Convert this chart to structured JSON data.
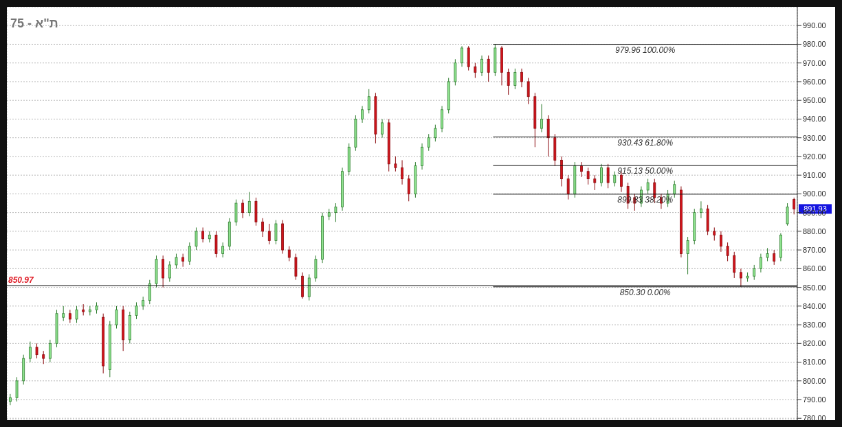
{
  "chart_data": {
    "type": "candlestick",
    "title": "ת\"א - 75",
    "categories": [
      null,
      null,
      null,
      null,
      null,
      null,
      null,
      null,
      null,
      null,
      null,
      null,
      null,
      null,
      null,
      null,
      null,
      null,
      null,
      null,
      null,
      null,
      null,
      null,
      null,
      null,
      null,
      null,
      null,
      null,
      null,
      null,
      null,
      null,
      null,
      null,
      null,
      null,
      null,
      null,
      null,
      null,
      null,
      null,
      null,
      null,
      null,
      null,
      null,
      null,
      null,
      null,
      null,
      null,
      null,
      null,
      null,
      null,
      null,
      null,
      null,
      null,
      null,
      null,
      null,
      null,
      null,
      null,
      null,
      null,
      null,
      null,
      null,
      null,
      null,
      null,
      null,
      null,
      null,
      null,
      null,
      null,
      null,
      null,
      null,
      null,
      null,
      null,
      null,
      null,
      null,
      null,
      null,
      null,
      null,
      null,
      null,
      null,
      null,
      null,
      null,
      null,
      null,
      null,
      null,
      null,
      null,
      null,
      null,
      null,
      null,
      null,
      null,
      null,
      null,
      null,
      null,
      null,
      null
    ],
    "ohlc": [
      [
        789,
        793,
        787,
        791
      ],
      [
        791,
        802,
        789,
        800
      ],
      [
        800,
        814,
        798,
        812
      ],
      [
        812,
        821,
        810,
        818
      ],
      [
        818,
        820,
        812,
        814
      ],
      [
        814,
        816,
        809,
        812
      ],
      [
        812,
        822,
        810,
        820
      ],
      [
        820,
        838,
        818,
        836
      ],
      [
        834,
        840,
        832,
        836
      ],
      [
        836,
        838,
        831,
        833
      ],
      [
        833,
        840,
        831,
        838
      ],
      [
        838,
        841,
        835,
        837
      ],
      [
        837,
        840,
        835,
        838
      ],
      [
        838,
        842,
        836,
        840
      ],
      [
        834,
        836,
        804,
        808
      ],
      [
        806,
        832,
        802,
        830
      ],
      [
        830,
        840,
        828,
        838
      ],
      [
        838,
        840,
        816,
        822
      ],
      [
        822,
        837,
        820,
        835
      ],
      [
        835,
        842,
        833,
        840
      ],
      [
        840,
        845,
        838,
        843
      ],
      [
        843,
        854,
        841,
        852
      ],
      [
        852,
        867,
        850,
        865
      ],
      [
        865,
        867,
        850,
        855
      ],
      [
        855,
        864,
        853,
        862
      ],
      [
        862,
        868,
        860,
        866
      ],
      [
        866,
        868,
        861,
        864
      ],
      [
        864,
        874,
        862,
        872
      ],
      [
        872,
        882,
        870,
        880
      ],
      [
        880,
        882,
        874,
        876
      ],
      [
        876,
        880,
        874,
        878
      ],
      [
        878,
        880,
        866,
        868
      ],
      [
        868,
        874,
        866,
        872
      ],
      [
        872,
        887,
        870,
        885
      ],
      [
        885,
        897,
        883,
        895
      ],
      [
        895,
        897,
        887,
        890
      ],
      [
        890,
        901,
        888,
        896
      ],
      [
        896,
        898,
        883,
        885
      ],
      [
        885,
        887,
        877,
        880
      ],
      [
        880,
        884,
        873,
        875
      ],
      [
        875,
        886,
        873,
        884
      ],
      [
        884,
        886,
        868,
        870
      ],
      [
        870,
        872,
        864,
        866
      ],
      [
        866,
        868,
        854,
        856
      ],
      [
        856,
        858,
        844,
        845
      ],
      [
        845,
        857,
        843,
        855
      ],
      [
        855,
        867,
        853,
        865
      ],
      [
        865,
        890,
        863,
        888
      ],
      [
        888,
        892,
        886,
        890
      ],
      [
        890,
        895,
        885,
        893
      ],
      [
        893,
        914,
        891,
        912
      ],
      [
        912,
        927,
        910,
        925
      ],
      [
        925,
        942,
        923,
        940
      ],
      [
        940,
        947,
        938,
        945
      ],
      [
        945,
        956,
        943,
        952
      ],
      [
        952,
        954,
        927,
        932
      ],
      [
        932,
        940,
        930,
        938
      ],
      [
        938,
        940,
        912,
        916
      ],
      [
        916,
        920,
        912,
        914
      ],
      [
        914,
        918,
        905,
        908
      ],
      [
        908,
        910,
        896,
        900
      ],
      [
        900,
        917,
        898,
        915
      ],
      [
        915,
        927,
        913,
        925
      ],
      [
        925,
        932,
        923,
        930
      ],
      [
        930,
        937,
        928,
        935
      ],
      [
        935,
        947,
        933,
        945
      ],
      [
        945,
        962,
        943,
        960
      ],
      [
        960,
        972,
        958,
        970
      ],
      [
        970,
        979,
        968,
        978
      ],
      [
        978,
        979,
        966,
        968
      ],
      [
        968,
        970,
        962,
        965
      ],
      [
        965,
        974,
        963,
        972
      ],
      [
        972,
        974,
        960,
        965
      ],
      [
        965,
        979.96,
        963,
        978
      ],
      [
        978,
        979,
        958,
        965
      ],
      [
        965,
        967,
        953,
        958
      ],
      [
        958,
        967,
        956,
        965
      ],
      [
        965,
        967,
        957,
        960
      ],
      [
        960,
        962,
        948,
        952
      ],
      [
        952,
        954,
        925,
        935
      ],
      [
        935,
        948,
        933,
        940
      ],
      [
        940,
        942,
        920,
        930
      ],
      [
        930,
        932,
        915,
        918
      ],
      [
        918,
        920,
        904,
        908
      ],
      [
        908,
        910,
        897,
        900
      ],
      [
        900,
        917,
        898,
        915
      ],
      [
        915,
        917,
        909,
        912
      ],
      [
        912,
        914,
        905,
        908
      ],
      [
        908,
        910,
        902,
        906
      ],
      [
        906,
        916,
        904,
        914
      ],
      [
        914,
        916,
        903,
        906
      ],
      [
        906,
        912,
        904,
        910
      ],
      [
        910,
        912,
        901,
        904
      ],
      [
        904,
        906,
        892,
        895
      ],
      [
        898,
        900,
        891,
        895
      ],
      [
        895,
        904,
        893,
        902
      ],
      [
        902,
        908,
        900,
        906
      ],
      [
        906,
        908,
        895,
        898
      ],
      [
        898,
        900,
        892,
        895
      ],
      [
        895,
        902,
        893,
        900
      ],
      [
        900,
        907,
        898,
        905
      ],
      [
        902,
        904,
        866,
        868
      ],
      [
        868,
        877,
        857,
        875
      ],
      [
        875,
        892,
        873,
        890
      ],
      [
        890,
        896,
        887,
        892
      ],
      [
        892,
        894,
        878,
        880
      ],
      [
        880,
        882,
        875,
        878
      ],
      [
        878,
        880,
        869,
        872
      ],
      [
        872,
        874,
        864,
        867
      ],
      [
        867,
        869,
        855,
        858
      ],
      [
        858,
        860,
        850.3,
        855
      ],
      [
        855,
        858,
        853,
        856
      ],
      [
        856,
        862,
        854,
        860
      ],
      [
        860,
        868,
        858,
        866
      ],
      [
        866,
        871,
        864,
        868
      ],
      [
        868,
        870,
        862,
        864
      ],
      [
        866,
        879,
        864,
        878
      ],
      [
        884,
        895,
        883,
        893
      ],
      [
        897,
        898,
        889,
        891.93
      ]
    ],
    "ylim": [
      779,
      1000
    ],
    "yticks": [
      {
        "value": 780,
        "label": "780.00"
      },
      {
        "value": 790,
        "label": "790.00"
      },
      {
        "value": 800,
        "label": "800.00"
      },
      {
        "value": 810,
        "label": "810.00"
      },
      {
        "value": 820,
        "label": "820.00"
      },
      {
        "value": 830,
        "label": "830.00"
      },
      {
        "value": 840,
        "label": "840.00"
      },
      {
        "value": 850,
        "label": "850.00"
      },
      {
        "value": 860,
        "label": "860.00"
      },
      {
        "value": 870,
        "label": "870.00"
      },
      {
        "value": 880,
        "label": "880.00"
      },
      {
        "value": 890,
        "label": "890.00"
      },
      {
        "value": 900,
        "label": "900.00"
      },
      {
        "value": 910,
        "label": "910.00"
      },
      {
        "value": 920,
        "label": "920.00"
      },
      {
        "value": 930,
        "label": "930.00"
      },
      {
        "value": 940,
        "label": "940.00"
      },
      {
        "value": 950,
        "label": "950.00"
      },
      {
        "value": 960,
        "label": "960.00"
      },
      {
        "value": 970,
        "label": "970.00"
      },
      {
        "value": 980,
        "label": "980.00"
      },
      {
        "value": 990,
        "label": "990.00"
      }
    ],
    "ref_lines": [
      {
        "axis": "y",
        "value": 850.97,
        "label": "850.97"
      },
      {
        "axis": "y",
        "value": 979.96,
        "label": "979.96 100.00%"
      },
      {
        "axis": "y",
        "value": 930.43,
        "label": "930.43 61.80%"
      },
      {
        "axis": "y",
        "value": 915.13,
        "label": "915.13 50.00%"
      },
      {
        "axis": "y",
        "value": 899.83,
        "label": "899.83 38.20%"
      },
      {
        "axis": "y",
        "value": 850.3,
        "label": "850.30 0.00%"
      }
    ],
    "annotations": [
      "891.93"
    ],
    "grid": true,
    "legend": false
  }
}
